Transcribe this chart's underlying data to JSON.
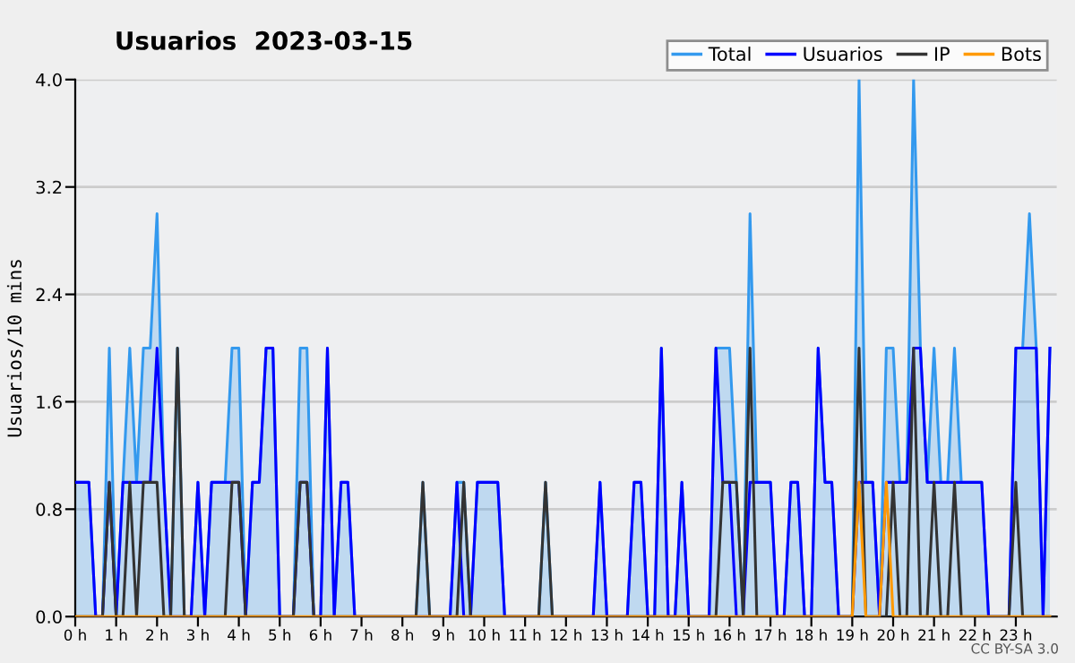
{
  "chart_data": {
    "type": "line",
    "title": "Usuarios  2023-03-15",
    "ylabel": "Usuarios/10 mins",
    "x": [
      "2023-03-15T00:00",
      "2023-03-15T00:10",
      "2023-03-15T00:20",
      "2023-03-15T00:30",
      "2023-03-15T00:40",
      "2023-03-15T00:50",
      "2023-03-15T01:00",
      "2023-03-15T01:10",
      "2023-03-15T01:20",
      "2023-03-15T01:30",
      "2023-03-15T01:40",
      "2023-03-15T01:50",
      "2023-03-15T02:00",
      "2023-03-15T02:10",
      "2023-03-15T02:20",
      "2023-03-15T02:30",
      "2023-03-15T02:40",
      "2023-03-15T02:50",
      "2023-03-15T03:00",
      "2023-03-15T03:10",
      "2023-03-15T03:20",
      "2023-03-15T03:30",
      "2023-03-15T03:40",
      "2023-03-15T03:50",
      "2023-03-15T04:00",
      "2023-03-15T04:10",
      "2023-03-15T04:20",
      "2023-03-15T04:30",
      "2023-03-15T04:40",
      "2023-03-15T04:50",
      "2023-03-15T05:00",
      "2023-03-15T05:10",
      "2023-03-15T05:20",
      "2023-03-15T05:30",
      "2023-03-15T05:40",
      "2023-03-15T05:50",
      "2023-03-15T06:00",
      "2023-03-15T06:10",
      "2023-03-15T06:20",
      "2023-03-15T06:30",
      "2023-03-15T06:40",
      "2023-03-15T06:50",
      "2023-03-15T07:00",
      "2023-03-15T07:10",
      "2023-03-15T07:20",
      "2023-03-15T07:30",
      "2023-03-15T07:40",
      "2023-03-15T07:50",
      "2023-03-15T08:00",
      "2023-03-15T08:10",
      "2023-03-15T08:20",
      "2023-03-15T08:30",
      "2023-03-15T08:40",
      "2023-03-15T08:50",
      "2023-03-15T09:00",
      "2023-03-15T09:10",
      "2023-03-15T09:20",
      "2023-03-15T09:30",
      "2023-03-15T09:40",
      "2023-03-15T09:50",
      "2023-03-15T10:00",
      "2023-03-15T10:10",
      "2023-03-15T10:20",
      "2023-03-15T10:30",
      "2023-03-15T10:40",
      "2023-03-15T10:50",
      "2023-03-15T11:00",
      "2023-03-15T11:10",
      "2023-03-15T11:20",
      "2023-03-15T11:30",
      "2023-03-15T11:40",
      "2023-03-15T11:50",
      "2023-03-15T12:00",
      "2023-03-15T12:10",
      "2023-03-15T12:20",
      "2023-03-15T12:30",
      "2023-03-15T12:40",
      "2023-03-15T12:50",
      "2023-03-15T13:00",
      "2023-03-15T13:10",
      "2023-03-15T13:20",
      "2023-03-15T13:30",
      "2023-03-15T13:40",
      "2023-03-15T13:50",
      "2023-03-15T14:00",
      "2023-03-15T14:10",
      "2023-03-15T14:20",
      "2023-03-15T14:30",
      "2023-03-15T14:40",
      "2023-03-15T14:50",
      "2023-03-15T15:00",
      "2023-03-15T15:10",
      "2023-03-15T15:20",
      "2023-03-15T15:30",
      "2023-03-15T15:40",
      "2023-03-15T15:50",
      "2023-03-15T16:00",
      "2023-03-15T16:10",
      "2023-03-15T16:20",
      "2023-03-15T16:30",
      "2023-03-15T16:40",
      "2023-03-15T16:50",
      "2023-03-15T17:00",
      "2023-03-15T17:10",
      "2023-03-15T17:20",
      "2023-03-15T17:30",
      "2023-03-15T17:40",
      "2023-03-15T17:50",
      "2023-03-15T18:00",
      "2023-03-15T18:10",
      "2023-03-15T18:20",
      "2023-03-15T18:30",
      "2023-03-15T18:40",
      "2023-03-15T18:50",
      "2023-03-15T19:00",
      "2023-03-15T19:10",
      "2023-03-15T19:20",
      "2023-03-15T19:30",
      "2023-03-15T19:40",
      "2023-03-15T19:50",
      "2023-03-15T20:00",
      "2023-03-15T20:10",
      "2023-03-15T20:20",
      "2023-03-15T20:30",
      "2023-03-15T20:40",
      "2023-03-15T20:50",
      "2023-03-15T21:00",
      "2023-03-15T21:10",
      "2023-03-15T21:20",
      "2023-03-15T21:30",
      "2023-03-15T21:40",
      "2023-03-15T21:50",
      "2023-03-15T22:00",
      "2023-03-15T22:10",
      "2023-03-15T22:20",
      "2023-03-15T22:30",
      "2023-03-15T22:40",
      "2023-03-15T22:50",
      "2023-03-15T23:00",
      "2023-03-15T23:10",
      "2023-03-15T23:20",
      "2023-03-15T23:30",
      "2023-03-15T23:40",
      "2023-03-15T23:50"
    ],
    "series": [
      {
        "name": "Total",
        "type": "area",
        "color": "#3399ee",
        "values": [
          1,
          1,
          1,
          0,
          0,
          2,
          0,
          1,
          2,
          1,
          2,
          2,
          3,
          1,
          0,
          2,
          0,
          0,
          1,
          0,
          1,
          1,
          1,
          2,
          2,
          0,
          1,
          1,
          2,
          2,
          0,
          0,
          0,
          2,
          2,
          0,
          0,
          2,
          0,
          1,
          1,
          0,
          0,
          0,
          0,
          0,
          0,
          0,
          0,
          0,
          0,
          1,
          0,
          0,
          0,
          0,
          1,
          1,
          0,
          1,
          1,
          1,
          1,
          0,
          0,
          0,
          0,
          0,
          0,
          1,
          0,
          0,
          0,
          0,
          0,
          0,
          0,
          1,
          0,
          0,
          0,
          0,
          1,
          1,
          0,
          0,
          2,
          0,
          0,
          1,
          0,
          0,
          0,
          0,
          2,
          2,
          2,
          1,
          0,
          3,
          1,
          1,
          1,
          0,
          0,
          1,
          1,
          0,
          0,
          2,
          1,
          1,
          0,
          0,
          0,
          4,
          1,
          1,
          0,
          2,
          2,
          1,
          1,
          4,
          2,
          1,
          2,
          1,
          1,
          2,
          1,
          1,
          1,
          1,
          0,
          0,
          0,
          0,
          2,
          2,
          3,
          2,
          0,
          2
        ]
      },
      {
        "name": "Usuarios",
        "color": "#0000ff",
        "values": [
          1,
          1,
          1,
          0,
          0,
          1,
          0,
          1,
          1,
          1,
          1,
          1,
          2,
          1,
          0,
          0,
          0,
          0,
          1,
          0,
          1,
          1,
          1,
          1,
          1,
          0,
          1,
          1,
          2,
          2,
          0,
          0,
          0,
          1,
          1,
          0,
          0,
          2,
          0,
          1,
          1,
          0,
          0,
          0,
          0,
          0,
          0,
          0,
          0,
          0,
          0,
          0,
          0,
          0,
          0,
          0,
          1,
          0,
          0,
          1,
          1,
          1,
          1,
          0,
          0,
          0,
          0,
          0,
          0,
          0,
          0,
          0,
          0,
          0,
          0,
          0,
          0,
          1,
          0,
          0,
          0,
          0,
          1,
          1,
          0,
          0,
          2,
          0,
          0,
          1,
          0,
          0,
          0,
          0,
          2,
          1,
          1,
          0,
          0,
          1,
          1,
          1,
          1,
          0,
          0,
          1,
          1,
          0,
          0,
          2,
          1,
          1,
          0,
          0,
          0,
          1,
          1,
          1,
          0,
          1,
          1,
          1,
          1,
          2,
          2,
          1,
          1,
          1,
          1,
          1,
          1,
          1,
          1,
          1,
          0,
          0,
          0,
          0,
          2,
          2,
          2,
          2,
          0,
          2
        ]
      },
      {
        "name": "IP",
        "color": "#333333",
        "values": [
          0,
          0,
          0,
          0,
          0,
          1,
          0,
          0,
          1,
          0,
          1,
          1,
          1,
          0,
          0,
          2,
          0,
          0,
          0,
          0,
          0,
          0,
          0,
          1,
          1,
          0,
          0,
          0,
          0,
          0,
          0,
          0,
          0,
          1,
          1,
          0,
          0,
          0,
          0,
          0,
          0,
          0,
          0,
          0,
          0,
          0,
          0,
          0,
          0,
          0,
          0,
          1,
          0,
          0,
          0,
          0,
          0,
          1,
          0,
          0,
          0,
          0,
          0,
          0,
          0,
          0,
          0,
          0,
          0,
          1,
          0,
          0,
          0,
          0,
          0,
          0,
          0,
          0,
          0,
          0,
          0,
          0,
          0,
          0,
          0,
          0,
          0,
          0,
          0,
          0,
          0,
          0,
          0,
          0,
          0,
          1,
          1,
          1,
          0,
          2,
          0,
          0,
          0,
          0,
          0,
          0,
          0,
          0,
          0,
          0,
          0,
          0,
          0,
          0,
          0,
          2,
          0,
          0,
          0,
          0,
          1,
          0,
          0,
          2,
          0,
          0,
          1,
          0,
          0,
          1,
          0,
          0,
          0,
          0,
          0,
          0,
          0,
          0,
          1,
          0,
          0,
          0,
          0,
          0
        ]
      },
      {
        "name": "Bots",
        "color": "#ff9900",
        "values": [
          0,
          0,
          0,
          0,
          0,
          0,
          0,
          0,
          0,
          0,
          0,
          0,
          0,
          0,
          0,
          0,
          0,
          0,
          0,
          0,
          0,
          0,
          0,
          0,
          0,
          0,
          0,
          0,
          0,
          0,
          0,
          0,
          0,
          0,
          0,
          0,
          0,
          0,
          0,
          0,
          0,
          0,
          0,
          0,
          0,
          0,
          0,
          0,
          0,
          0,
          0,
          0,
          0,
          0,
          0,
          0,
          0,
          0,
          0,
          0,
          0,
          0,
          0,
          0,
          0,
          0,
          0,
          0,
          0,
          0,
          0,
          0,
          0,
          0,
          0,
          0,
          0,
          0,
          0,
          0,
          0,
          0,
          0,
          0,
          0,
          0,
          0,
          0,
          0,
          0,
          0,
          0,
          0,
          0,
          0,
          0,
          0,
          0,
          0,
          0,
          0,
          0,
          0,
          0,
          0,
          0,
          0,
          0,
          0,
          0,
          0,
          0,
          0,
          0,
          0,
          1,
          0,
          0,
          0,
          1,
          0,
          0,
          0,
          0,
          0,
          0,
          0,
          0,
          0,
          0,
          0,
          0,
          0,
          0,
          0,
          0,
          0,
          0,
          0,
          0,
          0,
          0,
          0,
          0
        ]
      }
    ],
    "xlim": [
      "2023-03-15T00:00",
      "2023-03-16T00:00"
    ],
    "xticks": [
      {
        "value": "2023-03-15T00:00",
        "label": "0 h"
      },
      {
        "value": "2023-03-15T01:00",
        "label": "1 h"
      },
      {
        "value": "2023-03-15T02:00",
        "label": "2 h"
      },
      {
        "value": "2023-03-15T03:00",
        "label": "3 h"
      },
      {
        "value": "2023-03-15T04:00",
        "label": "4 h"
      },
      {
        "value": "2023-03-15T05:00",
        "label": "5 h"
      },
      {
        "value": "2023-03-15T06:00",
        "label": "6 h"
      },
      {
        "value": "2023-03-15T07:00",
        "label": "7 h"
      },
      {
        "value": "2023-03-15T08:00",
        "label": "8 h"
      },
      {
        "value": "2023-03-15T09:00",
        "label": "9 h"
      },
      {
        "value": "2023-03-15T10:00",
        "label": "10 h"
      },
      {
        "value": "2023-03-15T11:00",
        "label": "11 h"
      },
      {
        "value": "2023-03-15T12:00",
        "label": "12 h"
      },
      {
        "value": "2023-03-15T13:00",
        "label": "13 h"
      },
      {
        "value": "2023-03-15T14:00",
        "label": "14 h"
      },
      {
        "value": "2023-03-15T15:00",
        "label": "15 h"
      },
      {
        "value": "2023-03-15T16:00",
        "label": "16 h"
      },
      {
        "value": "2023-03-15T17:00",
        "label": "17 h"
      },
      {
        "value": "2023-03-15T18:00",
        "label": "18 h"
      },
      {
        "value": "2023-03-15T19:00",
        "label": "19 h"
      },
      {
        "value": "2023-03-15T20:00",
        "label": "20 h"
      },
      {
        "value": "2023-03-15T21:00",
        "label": "21 h"
      },
      {
        "value": "2023-03-15T22:00",
        "label": "22 h"
      },
      {
        "value": "2023-03-15T23:00",
        "label": "23 h"
      }
    ],
    "ylim": [
      0,
      4
    ],
    "yticks": [
      {
        "value": 0,
        "label": "0.0"
      },
      {
        "value": 0.8,
        "label": "0.8"
      },
      {
        "value": 1.6,
        "label": "1.6"
      },
      {
        "value": 2.4,
        "label": "2.4"
      },
      {
        "value": 3.2,
        "label": "3.2"
      },
      {
        "value": 4,
        "label": "4.0"
      }
    ],
    "grid": "y",
    "legend": "top right",
    "marker": "none",
    "line_style": "solid",
    "annotations": [
      "CC BY-SA 3.0"
    ]
  }
}
